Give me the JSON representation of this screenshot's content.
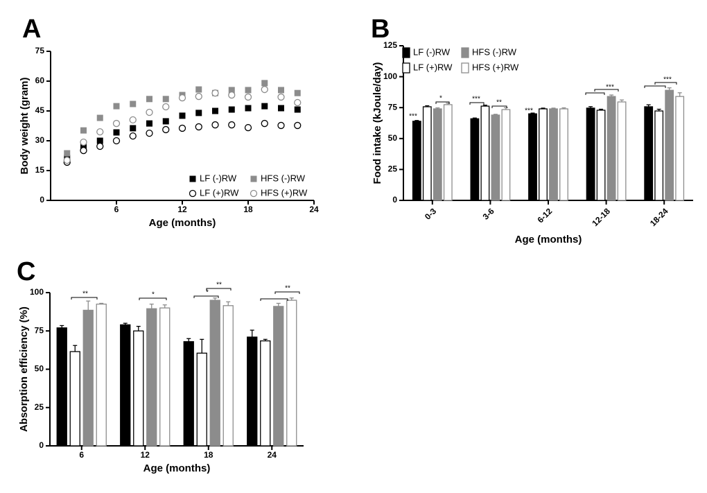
{
  "chart_data": [
    {
      "type": "scatter",
      "panel": "A",
      "xlabel": "Age (months)",
      "ylabel": "Body weight (gram)",
      "xlim": [
        0,
        24
      ],
      "xticks": [
        6,
        12,
        18,
        24
      ],
      "ylim": [
        0,
        75
      ],
      "yticks": [
        0,
        15,
        30,
        45,
        60,
        75
      ],
      "x": [
        1.5,
        3,
        4.5,
        6,
        7.5,
        9,
        10.5,
        12,
        13.5,
        15,
        16.5,
        18,
        19.5,
        21,
        22.5
      ],
      "series": [
        {
          "name": "LF (-)RW",
          "color": "#000000",
          "marker": "square",
          "values": [
            21.3,
            27.2,
            30,
            34.2,
            36.3,
            38.7,
            39.8,
            42.6,
            44,
            45,
            45.7,
            46.4,
            47.4,
            46.4,
            45.7
          ]
        },
        {
          "name": "LF (+)RW",
          "color": "#000000",
          "marker": "circle",
          "values": [
            19.2,
            25.1,
            27.2,
            30,
            32.4,
            33.8,
            35.6,
            36.3,
            37,
            38,
            38,
            36.6,
            38.7,
            37.7,
            37.7
          ]
        },
        {
          "name": "HFS (-)RW",
          "color": "#8c8c8c",
          "marker": "square",
          "values": [
            23.7,
            35.2,
            41.5,
            47.4,
            48.5,
            51,
            51,
            53,
            55.8,
            54,
            55.5,
            55.5,
            59,
            55.5,
            54
          ]
        },
        {
          "name": "HFS (+)RW",
          "color": "#8c8c8c",
          "marker": "circle",
          "values": [
            20.2,
            29.3,
            34.5,
            38.7,
            40.5,
            44.3,
            47.1,
            51.6,
            52.3,
            54,
            53,
            52,
            55.8,
            52,
            49.2
          ]
        }
      ]
    },
    {
      "type": "bar",
      "panel": "B",
      "xlabel": "Age (months)",
      "ylabel": "Food intake (kJoule/day)",
      "ylim": [
        0,
        125
      ],
      "yticks": [
        0,
        25,
        50,
        75,
        100,
        125
      ],
      "categories": [
        "0-3",
        "3-6",
        "6-12",
        "12-18",
        "18-24"
      ],
      "series": [
        {
          "name": "LF (-)RW",
          "color": "#000000",
          "fill": "#000000",
          "values": [
            64,
            66,
            70,
            74.6,
            75.7
          ],
          "errors": [
            0.6,
            0.6,
            0.6,
            1.2,
            1.6
          ]
        },
        {
          "name": "LF (+)RW",
          "color": "#000000",
          "fill": "#ffffff",
          "values": [
            75.7,
            76.2,
            74,
            72.9,
            72.3
          ],
          "errors": [
            0.8,
            0.8,
            0.6,
            0.8,
            1.4
          ]
        },
        {
          "name": "HFS (-)RW",
          "color": "#8c8c8c",
          "fill": "#8c8c8c",
          "values": [
            74,
            69,
            74,
            84,
            89
          ],
          "errors": [
            0.8,
            0.6,
            0.6,
            1.2,
            2
          ]
        },
        {
          "name": "HFS (+)RW",
          "color": "#8c8c8c",
          "fill": "#ffffff",
          "values": [
            77.4,
            73.4,
            74,
            79.6,
            84
          ],
          "errors": [
            1.2,
            1.5,
            0.8,
            1.6,
            3
          ]
        }
      ],
      "annotations": [
        "***",
        "*",
        "***",
        "**",
        "***",
        "***",
        "***"
      ]
    },
    {
      "type": "bar",
      "panel": "C",
      "xlabel": "Age (months)",
      "ylabel": "Absorption efficiency (%)",
      "ylim": [
        0,
        100
      ],
      "yticks": [
        0,
        25,
        50,
        75,
        100
      ],
      "categories": [
        "6",
        "12",
        "18",
        "24"
      ],
      "series": [
        {
          "name": "LF (-)RW",
          "color": "#000000",
          "fill": "#000000",
          "values": [
            77,
            79,
            68,
            71
          ],
          "errors": [
            1.5,
            1,
            2,
            4.5
          ]
        },
        {
          "name": "LF (+)RW",
          "color": "#000000",
          "fill": "#ffffff",
          "values": [
            61.5,
            75,
            60.5,
            68.5
          ],
          "errors": [
            4,
            3,
            9,
            1
          ]
        },
        {
          "name": "HFS (-)RW",
          "color": "#8c8c8c",
          "fill": "#8c8c8c",
          "values": [
            88.5,
            89.5,
            95,
            91
          ],
          "errors": [
            6,
            3,
            1.5,
            2
          ]
        },
        {
          "name": "HFS (+)RW",
          "color": "#8c8c8c",
          "fill": "#ffffff",
          "values": [
            92.5,
            90,
            91.5,
            95
          ],
          "errors": [
            0.5,
            2,
            2.5,
            1.5
          ]
        }
      ],
      "annotations": [
        "**",
        "*",
        "*",
        "**",
        "**"
      ]
    }
  ]
}
